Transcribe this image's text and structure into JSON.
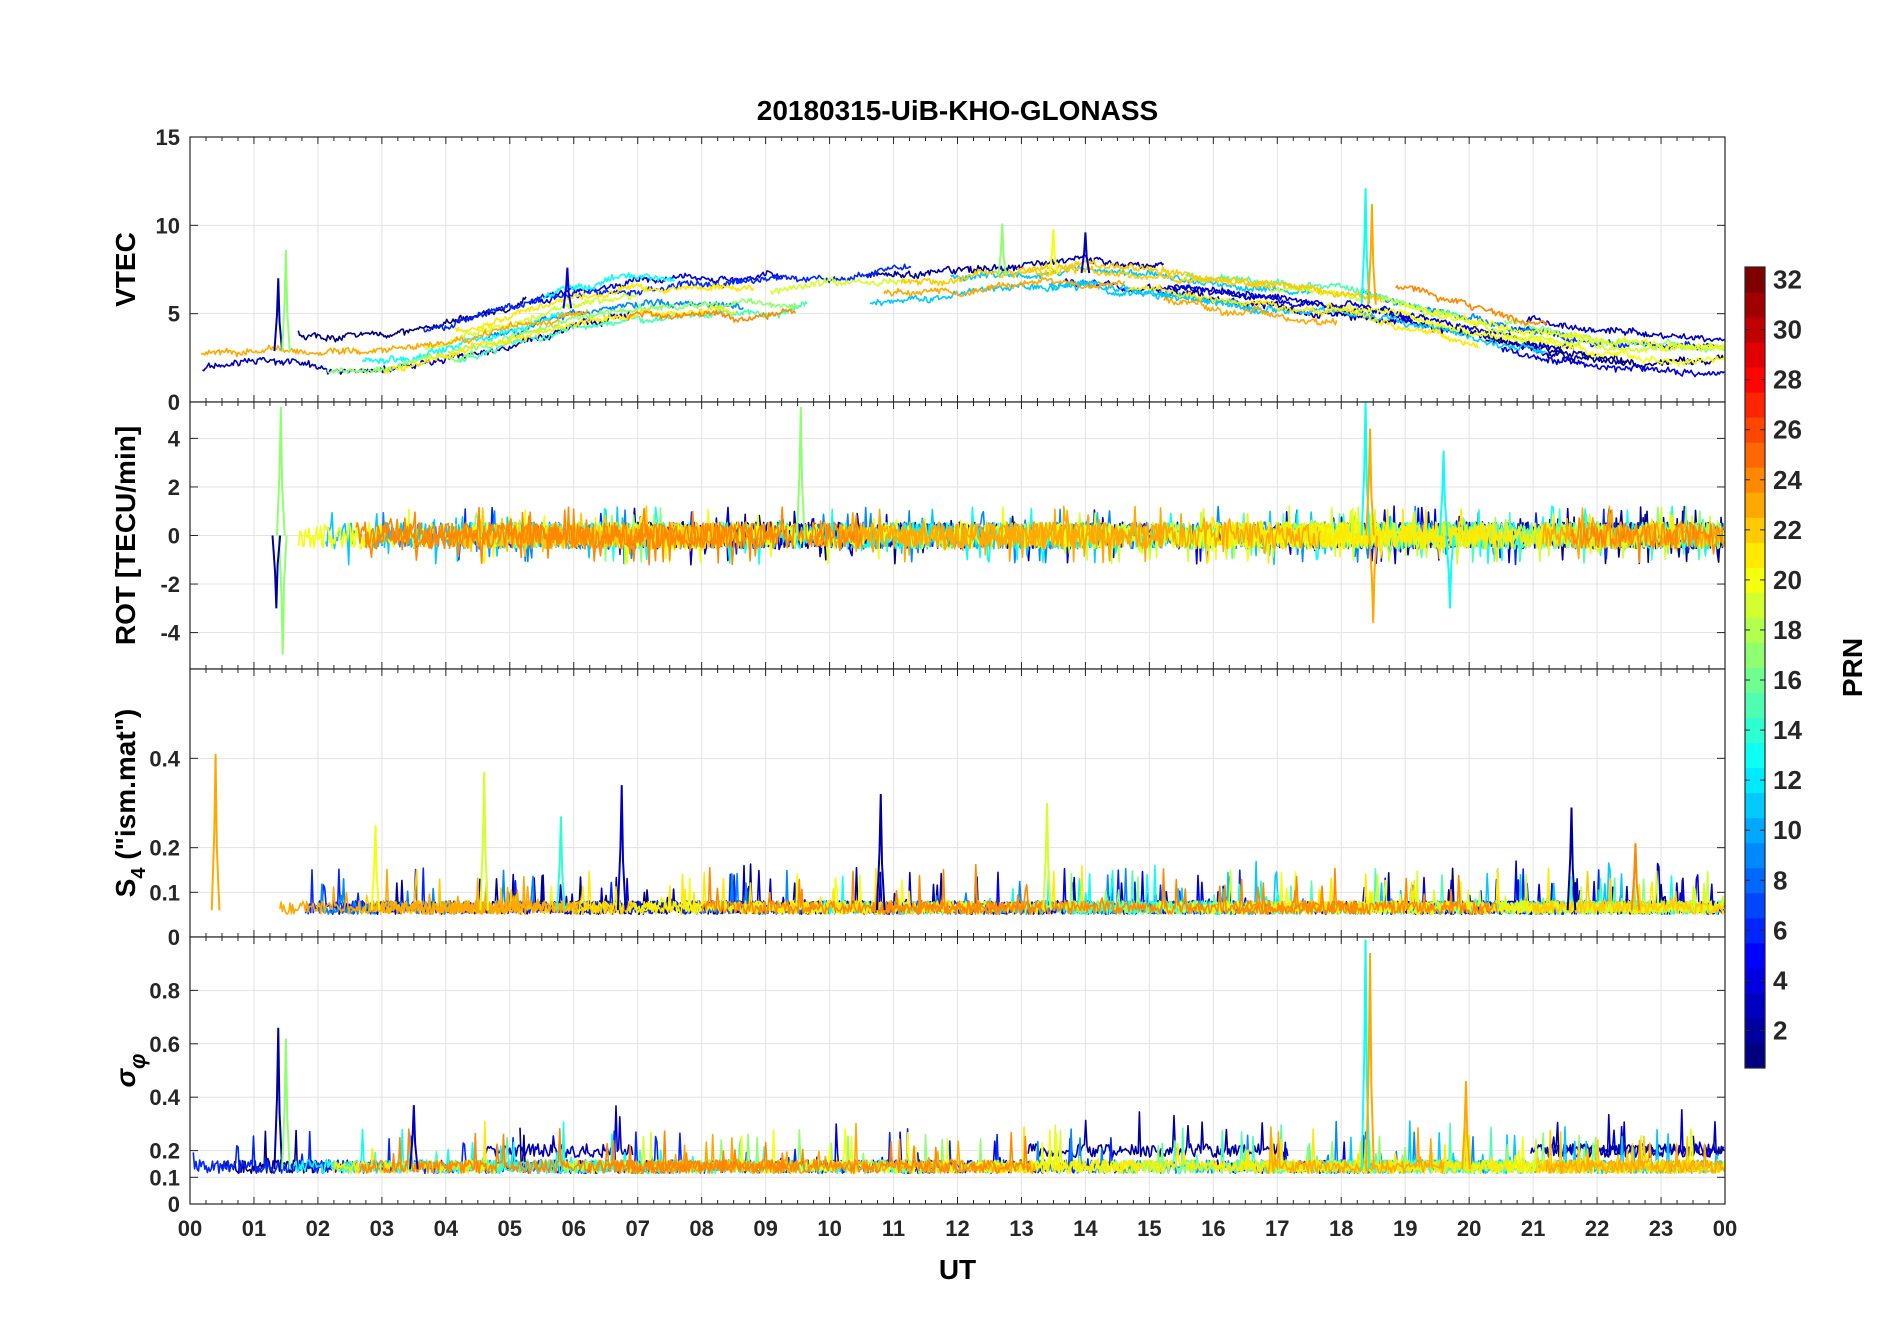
{
  "chart_data": {
    "type": "line",
    "title": "20180315-UiB-KHO-GLONASS",
    "xlabel": "UT",
    "x_tick_labels": [
      "00",
      "01",
      "02",
      "03",
      "04",
      "05",
      "06",
      "07",
      "08",
      "09",
      "10",
      "11",
      "12",
      "13",
      "14",
      "15",
      "16",
      "17",
      "18",
      "19",
      "20",
      "21",
      "22",
      "23",
      "00"
    ],
    "xlim": [
      0,
      24
    ],
    "grid": true,
    "colorbar": {
      "label": "PRN",
      "range": [
        1,
        32
      ],
      "ticks": [
        2,
        4,
        6,
        8,
        10,
        12,
        14,
        16,
        18,
        20,
        22,
        24,
        26,
        28,
        30,
        32
      ],
      "tick_labels": [
        "2",
        "4",
        "6",
        "8",
        "10",
        "12",
        "14",
        "16",
        "18",
        "20",
        "22",
        "24",
        "26",
        "28",
        "30",
        "32"
      ],
      "colormap": "jet"
    },
    "panels": [
      {
        "id": "vtec",
        "ylabel": "VTEC",
        "ylim": [
          0,
          15
        ],
        "yticks": [
          0,
          5,
          10,
          15
        ],
        "ytick_labels": [
          "0",
          "5",
          "10",
          "15"
        ],
        "baseline": [
          [
            0,
            2.8
          ],
          [
            1,
            3.0
          ],
          [
            2,
            2.7
          ],
          [
            3,
            2.8
          ],
          [
            4,
            3.4
          ],
          [
            5,
            4.4
          ],
          [
            6,
            5.4
          ],
          [
            7,
            5.9
          ],
          [
            8,
            6.0
          ],
          [
            9,
            6.1
          ],
          [
            10,
            6.4
          ],
          [
            11,
            6.6
          ],
          [
            12,
            6.9
          ],
          [
            13,
            7.2
          ],
          [
            14,
            7.3
          ],
          [
            15,
            7.0
          ],
          [
            16,
            6.5
          ],
          [
            17,
            6.1
          ],
          [
            18,
            5.8
          ],
          [
            19,
            5.2
          ],
          [
            20,
            4.3
          ],
          [
            21,
            3.6
          ],
          [
            22,
            3.0
          ],
          [
            23,
            2.8
          ],
          [
            24,
            2.7
          ]
        ],
        "noise": 0.6,
        "peaks": [
          {
            "t": 1.38,
            "v": 7.0,
            "prn": 2
          },
          {
            "t": 1.5,
            "v": 8.6,
            "prn": 17
          },
          {
            "t": 5.9,
            "v": 7.6,
            "prn": 4
          },
          {
            "t": 12.7,
            "v": 10.1,
            "prn": 17
          },
          {
            "t": 13.5,
            "v": 9.8,
            "prn": 20
          },
          {
            "t": 14.0,
            "v": 9.6,
            "prn": 3
          },
          {
            "t": 18.38,
            "v": 12.1,
            "prn": 13
          },
          {
            "t": 18.48,
            "v": 11.2,
            "prn": 23
          }
        ]
      },
      {
        "id": "rot",
        "ylabel": "ROT [TECU/min]",
        "ylim": [
          -5.5,
          5.5
        ],
        "yticks": [
          -4,
          -2,
          0,
          2,
          4
        ],
        "ytick_labels": [
          "-4",
          "-2",
          "0",
          "2",
          "4"
        ],
        "baseline": [
          [
            0,
            0
          ],
          [
            24,
            0
          ]
        ],
        "noise": 0.55,
        "peaks": [
          {
            "t": 1.42,
            "v": 5.3,
            "prn": 17
          },
          {
            "t": 1.45,
            "v": -4.9,
            "prn": 17
          },
          {
            "t": 1.35,
            "v": -3.0,
            "prn": 2
          },
          {
            "t": 9.55,
            "v": 5.3,
            "prn": 17
          },
          {
            "t": 18.38,
            "v": 5.5,
            "prn": 13
          },
          {
            "t": 18.45,
            "v": 4.4,
            "prn": 23
          },
          {
            "t": 18.5,
            "v": -3.6,
            "prn": 23
          },
          {
            "t": 19.6,
            "v": 3.5,
            "prn": 13
          },
          {
            "t": 19.7,
            "v": -3.0,
            "prn": 13
          }
        ]
      },
      {
        "id": "s4",
        "ylabel": "S4 (\"ism.mat\")",
        "ylim": [
          0,
          0.6
        ],
        "yticks": [
          0,
          0.1,
          0.2,
          0.4
        ],
        "ytick_labels": [
          "0",
          "0.1",
          "0.2",
          "0.4"
        ],
        "baseline": [
          [
            0,
            0.06
          ],
          [
            24,
            0.06
          ]
        ],
        "noise": 0.03,
        "peaks": [
          {
            "t": 0.4,
            "v": 0.41,
            "prn": 23
          },
          {
            "t": 2.9,
            "v": 0.25,
            "prn": 20
          },
          {
            "t": 4.6,
            "v": 0.37,
            "prn": 19
          },
          {
            "t": 5.8,
            "v": 0.27,
            "prn": 14
          },
          {
            "t": 6.75,
            "v": 0.34,
            "prn": 3
          },
          {
            "t": 10.8,
            "v": 0.32,
            "prn": 2
          },
          {
            "t": 13.4,
            "v": 0.3,
            "prn": 19
          },
          {
            "t": 21.6,
            "v": 0.29,
            "prn": 2
          },
          {
            "t": 22.6,
            "v": 0.21,
            "prn": 24
          }
        ]
      },
      {
        "id": "sigma_phi",
        "ylabel": "σφ",
        "ylim": [
          0,
          1
        ],
        "yticks": [
          0,
          0.1,
          0.2,
          0.4,
          0.6,
          0.8
        ],
        "ytick_labels": [
          "0",
          "0.1",
          "0.2",
          "0.4",
          "0.6",
          "0.8"
        ],
        "baseline": [
          [
            0,
            0.13
          ],
          [
            24,
            0.13
          ]
        ],
        "noise": 0.05,
        "peaks": [
          {
            "t": 1.38,
            "v": 0.66,
            "prn": 2
          },
          {
            "t": 1.5,
            "v": 0.62,
            "prn": 17
          },
          {
            "t": 3.5,
            "v": 0.37,
            "prn": 3
          },
          {
            "t": 18.38,
            "v": 0.99,
            "prn": 13
          },
          {
            "t": 18.45,
            "v": 0.94,
            "prn": 23
          },
          {
            "t": 19.95,
            "v": 0.46,
            "prn": 23
          }
        ]
      }
    ],
    "series_prns": [
      1,
      2,
      3,
      4,
      6,
      9,
      11,
      13,
      15,
      17,
      19,
      20,
      21,
      22,
      23,
      24
    ]
  }
}
